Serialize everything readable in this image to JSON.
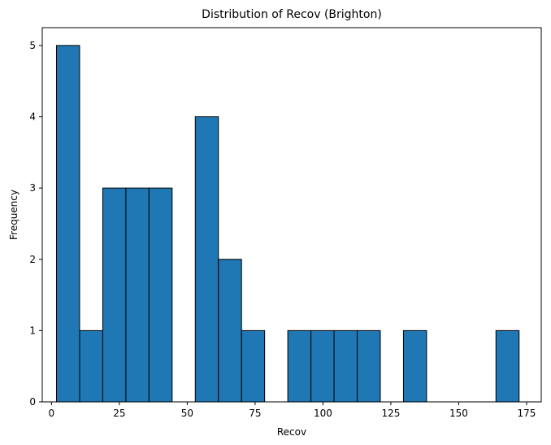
{
  "chart_data": {
    "type": "bar",
    "title": "Distribution of Recov (Brighton)",
    "xlabel": "Recov",
    "ylabel": "Frequency",
    "xlim": [
      -3.4,
      180.4
    ],
    "ylim": [
      0,
      5.25
    ],
    "xticks": [
      0,
      25,
      50,
      75,
      100,
      125,
      150,
      175
    ],
    "yticks": [
      0,
      1,
      2,
      3,
      4,
      5
    ],
    "bin_edges": [
      1.84,
      10.36,
      18.88,
      27.4,
      35.92,
      44.44,
      52.96,
      61.48,
      70.0,
      78.52,
      87.04,
      95.56,
      104.08,
      112.6,
      121.12,
      129.64,
      138.16,
      146.68,
      155.2,
      163.72,
      172.24
    ],
    "values": [
      5,
      1,
      3,
      3,
      3,
      0,
      4,
      2,
      1,
      0,
      1,
      1,
      1,
      1,
      0,
      1,
      0,
      0,
      0,
      1
    ],
    "bar_color": "#1f77b4",
    "edge_color": "#000000",
    "grid": false,
    "legend": "none"
  }
}
